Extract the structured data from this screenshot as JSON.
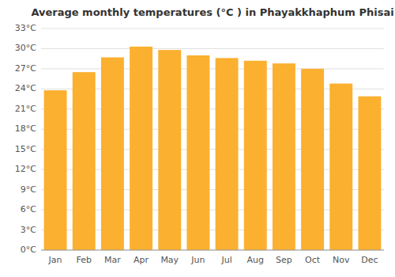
{
  "chart_data": {
    "type": "bar",
    "title": "Average monthly temperatures (°C ) in Phayakkhaphum Phisai",
    "categories": [
      "Jan",
      "Feb",
      "Mar",
      "Apr",
      "May",
      "Jun",
      "Jul",
      "Aug",
      "Sep",
      "Oct",
      "Nov",
      "Dec"
    ],
    "values": [
      23.8,
      26.5,
      28.7,
      30.3,
      29.8,
      29.0,
      28.6,
      28.2,
      27.8,
      27.0,
      24.8,
      22.9
    ],
    "color": "#FBB030",
    "ylim": [
      0,
      33
    ],
    "yticks": [
      {
        "value": 0,
        "label": "0°C"
      },
      {
        "value": 3,
        "label": "3°C"
      },
      {
        "value": 6,
        "label": "6°C"
      },
      {
        "value": 9,
        "label": "9°C"
      },
      {
        "value": 12,
        "label": "12°C"
      },
      {
        "value": 15,
        "label": "15°C"
      },
      {
        "value": 18,
        "label": "18°C"
      },
      {
        "value": 21,
        "label": "21°C"
      },
      {
        "value": 24,
        "label": "24°C"
      },
      {
        "value": 27,
        "label": "27°C"
      },
      {
        "value": 30,
        "label": "30°C"
      },
      {
        "value": 33,
        "label": "33°C"
      }
    ],
    "grid": true
  }
}
